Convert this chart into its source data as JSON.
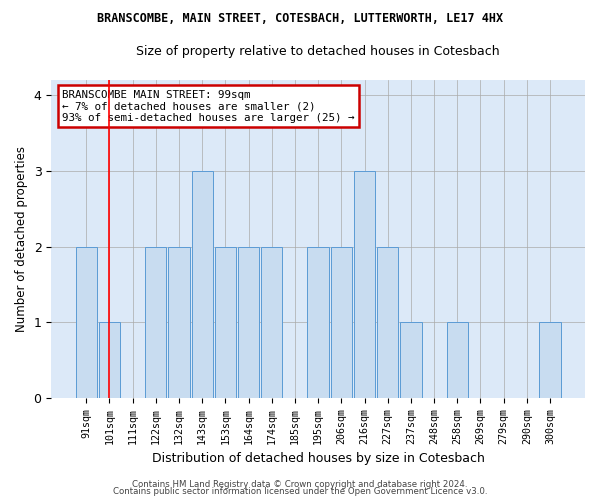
{
  "title_line1": "BRANSCOMBE, MAIN STREET, COTESBACH, LUTTERWORTH, LE17 4HX",
  "title_line2": "Size of property relative to detached houses in Cotesbach",
  "xlabel": "Distribution of detached houses by size in Cotesbach",
  "ylabel": "Number of detached properties",
  "categories": [
    "91sqm",
    "101sqm",
    "111sqm",
    "122sqm",
    "132sqm",
    "143sqm",
    "153sqm",
    "164sqm",
    "174sqm",
    "185sqm",
    "195sqm",
    "206sqm",
    "216sqm",
    "227sqm",
    "237sqm",
    "248sqm",
    "258sqm",
    "269sqm",
    "279sqm",
    "290sqm",
    "300sqm"
  ],
  "values": [
    2,
    1,
    0,
    2,
    2,
    3,
    2,
    2,
    2,
    0,
    2,
    2,
    3,
    2,
    1,
    0,
    1,
    0,
    0,
    0,
    1
  ],
  "bar_color": "#c8dcf0",
  "bar_edge_color": "#5b9bd5",
  "annotation_line1": "BRANSCOMBE MAIN STREET: 99sqm",
  "annotation_line2": "← 7% of detached houses are smaller (2)",
  "annotation_line3": "93% of semi-detached houses are larger (25) →",
  "annotation_box_color": "#ffffff",
  "annotation_box_edge": "#cc0000",
  "footer_line1": "Contains HM Land Registry data © Crown copyright and database right 2024.",
  "footer_line2": "Contains public sector information licensed under the Open Government Licence v3.0.",
  "vline_x": 1,
  "ylim": [
    0,
    4.2
  ],
  "yticks": [
    0,
    1,
    2,
    3,
    4
  ],
  "grid_color": "#aaaaaa",
  "bg_color": "#dce9f8",
  "title1_fontsize": 8.5,
  "title2_fontsize": 9
}
